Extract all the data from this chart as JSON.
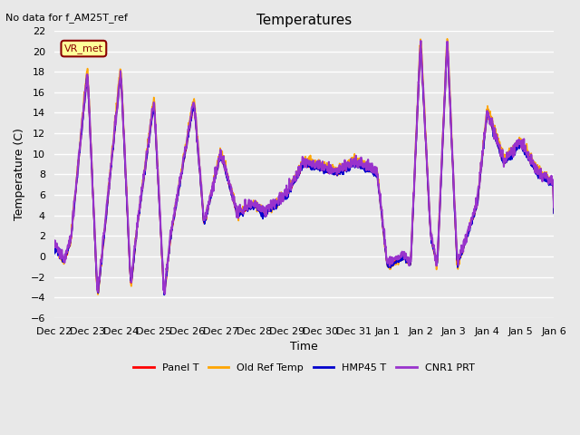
{
  "title": "Temperatures",
  "xlabel": "Time",
  "ylabel": "Temperature (C)",
  "ylim": [
    -6,
    22
  ],
  "yticks": [
    -6,
    -4,
    -2,
    0,
    2,
    4,
    6,
    8,
    10,
    12,
    14,
    16,
    18,
    20,
    22
  ],
  "background_color": "#e8e8e8",
  "plot_background": "#e8e8e8",
  "grid_color": "white",
  "line_colors": {
    "Panel T": "#ff0000",
    "Old Ref Temp": "#ffa500",
    "HMP45 T": "#0000cc",
    "CNR1 PRT": "#9933cc"
  },
  "line_widths": {
    "Panel T": 1.2,
    "Old Ref Temp": 1.2,
    "HMP45 T": 1.2,
    "CNR1 PRT": 1.5
  },
  "no_data_text": "No data for f_AM25T_ref",
  "vr_met_label": "VR_met",
  "xtick_labels": [
    "Dec 22",
    "Dec 23",
    "Dec 24",
    "Dec 25",
    "Dec 26",
    "Dec 27",
    "Dec 28",
    "Dec 29",
    "Dec 30",
    "Dec 31",
    "Jan 1",
    "Jan 2",
    "Jan 3",
    "Jan 4",
    "Jan 5",
    "Jan 6"
  ],
  "legend_entries": [
    "Panel T",
    "Old Ref Temp",
    "HMP45 T",
    "CNR1 PRT"
  ]
}
